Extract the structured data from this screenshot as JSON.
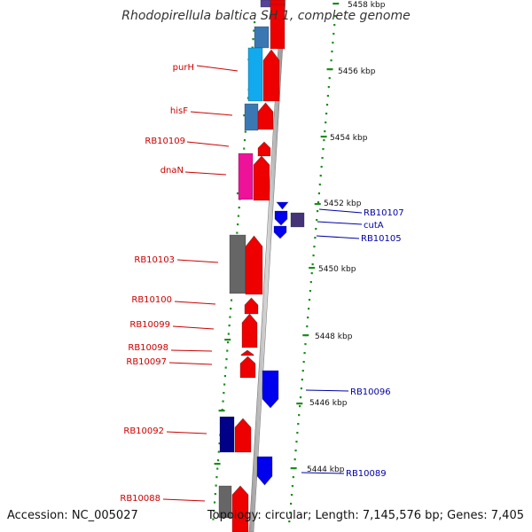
{
  "title": "Rhodopirellula baltica SH 1, complete genome",
  "footer": {
    "accession": "Accession: NC_005027",
    "topology": "Topology: circular; Length: 7,145,576 bp; Genes: 7,405"
  },
  "colors": {
    "forward_label": "#cc0000",
    "reverse_label": "#0000aa",
    "tick": "#1e8c1e",
    "forward_gene": "#ee0000",
    "reverse_gene": "#0000ee",
    "pseudo_gene": "#666666",
    "purH_gene": "#11aaee",
    "hisF_gene": "#3a78b4",
    "dnaN_gene": "#ee1199",
    "cutA_gene": "#443377",
    "RB10092_gene": "#000088"
  },
  "scale_labels": [
    "5458 kbp",
    "5456 kbp",
    "5454 kbp",
    "5452 kbp",
    "5450 kbp",
    "5448 kbp",
    "5446 kbp",
    "5444 kbp"
  ],
  "forward_labels": [
    "purH",
    "hisF",
    "RB10109",
    "dnaN",
    "RB10103",
    "RB10100",
    "RB10099",
    "RB10098",
    "RB10097",
    "RB10092",
    "RB10088"
  ],
  "reverse_labels": [
    "RB10107",
    "cutA",
    "RB10105",
    "RB10096",
    "RB10089"
  ]
}
